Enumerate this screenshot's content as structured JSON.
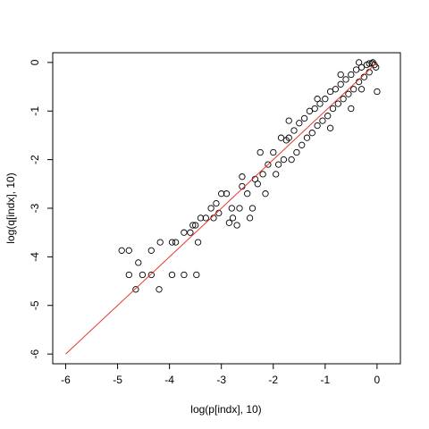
{
  "chart_data": {
    "type": "scatter",
    "title": "",
    "xlabel": "log(p[indx], 10)",
    "ylabel": "log(q[indx], 10)",
    "xlim": [
      -6.25,
      0.45
    ],
    "ylim": [
      -6.2,
      0.2
    ],
    "xticks": [
      -6,
      -5,
      -4,
      -3,
      -2,
      -1,
      0
    ],
    "yticks": [
      -6,
      -5,
      -4,
      -3,
      -2,
      -1,
      0
    ],
    "xtick_labels": [
      "-6",
      "-5",
      "-4",
      "-3",
      "-2",
      "-1",
      "0"
    ],
    "ytick_labels": [
      "-6",
      "-5",
      "-4",
      "-3",
      "-2",
      "-1",
      "0"
    ],
    "grid": false,
    "line": {
      "x": [
        -6,
        0
      ],
      "y": [
        -6,
        0
      ],
      "color": "#e8382c"
    },
    "point_color": "#000000",
    "points": [
      [
        -4.92,
        -3.87
      ],
      [
        -4.78,
        -3.87
      ],
      [
        -4.6,
        -4.12
      ],
      [
        -4.35,
        -3.87
      ],
      [
        -4.18,
        -3.7
      ],
      [
        -3.95,
        -3.7
      ],
      [
        -3.88,
        -3.7
      ],
      [
        -3.72,
        -3.5
      ],
      [
        -3.6,
        -3.5
      ],
      [
        -3.55,
        -3.35
      ],
      [
        -3.5,
        -3.35
      ],
      [
        -3.45,
        -3.7
      ],
      [
        -3.4,
        -3.2
      ],
      [
        -3.3,
        -3.2
      ],
      [
        -3.2,
        -3.0
      ],
      [
        -3.15,
        -3.2
      ],
      [
        -3.1,
        -2.9
      ],
      [
        -3.0,
        -2.7
      ],
      [
        -2.9,
        -2.7
      ],
      [
        -2.85,
        -3.3
      ],
      [
        -2.8,
        -3.0
      ],
      [
        -2.78,
        -3.2
      ],
      [
        -2.7,
        -3.35
      ],
      [
        -2.65,
        -3.0
      ],
      [
        -2.6,
        -2.55
      ],
      [
        -2.5,
        -2.7
      ],
      [
        -2.45,
        -3.2
      ],
      [
        -2.4,
        -3.0
      ],
      [
        -2.35,
        -2.4
      ],
      [
        -2.3,
        -2.5
      ],
      [
        -2.2,
        -2.3
      ],
      [
        -2.15,
        -2.7
      ],
      [
        -2.1,
        -2.1
      ],
      [
        -2.0,
        -1.85
      ],
      [
        -1.95,
        -2.3
      ],
      [
        -1.9,
        -2.1
      ],
      [
        -1.85,
        -1.55
      ],
      [
        -1.8,
        -2.0
      ],
      [
        -1.7,
        -1.55
      ],
      [
        -1.65,
        -2.0
      ],
      [
        -1.6,
        -1.4
      ],
      [
        -1.55,
        -1.85
      ],
      [
        -1.5,
        -1.25
      ],
      [
        -1.45,
        -1.7
      ],
      [
        -1.4,
        -1.15
      ],
      [
        -1.35,
        -1.55
      ],
      [
        -1.3,
        -1.0
      ],
      [
        -1.25,
        -1.45
      ],
      [
        -1.2,
        -0.95
      ],
      [
        -1.15,
        -1.3
      ],
      [
        -1.1,
        -0.85
      ],
      [
        -1.05,
        -1.2
      ],
      [
        -1.0,
        -0.75
      ],
      [
        -0.95,
        -1.1
      ],
      [
        -0.9,
        -0.6
      ],
      [
        -0.85,
        -0.95
      ],
      [
        -0.8,
        -0.55
      ],
      [
        -0.75,
        -0.85
      ],
      [
        -0.7,
        -0.45
      ],
      [
        -0.65,
        -0.75
      ],
      [
        -0.6,
        -0.35
      ],
      [
        -0.55,
        -0.65
      ],
      [
        -0.5,
        -0.25
      ],
      [
        -0.45,
        -0.55
      ],
      [
        -0.4,
        -0.15
      ],
      [
        -0.35,
        -0.4
      ],
      [
        -0.3,
        -0.1
      ],
      [
        -0.25,
        -0.3
      ],
      [
        -0.2,
        -0.05
      ],
      [
        -0.15,
        -0.2
      ],
      [
        -0.1,
        -0.02
      ],
      [
        -0.05,
        -0.05
      ],
      [
        -0.02,
        -0.1
      ],
      [
        0.0,
        -0.6
      ],
      [
        -0.3,
        -0.55
      ],
      [
        -0.5,
        -0.95
      ],
      [
        -0.9,
        -1.35
      ],
      [
        -1.7,
        -1.2
      ],
      [
        -2.6,
        -2.35
      ],
      [
        -3.05,
        -3.1
      ],
      [
        -2.25,
        -1.85
      ],
      [
        -1.75,
        -1.6
      ],
      [
        -1.15,
        -0.75
      ],
      [
        -0.7,
        -0.25
      ],
      [
        -0.35,
        0.0
      ],
      [
        -0.15,
        -0.02
      ],
      [
        -0.08,
        0.0
      ]
    ],
    "outliers": [
      [
        -4.78,
        -4.37
      ],
      [
        -4.52,
        -4.37
      ],
      [
        -4.35,
        -4.37
      ],
      [
        -4.65,
        -4.67
      ],
      [
        -4.2,
        -4.67
      ],
      [
        -3.95,
        -4.37
      ],
      [
        -3.72,
        -4.37
      ],
      [
        -3.48,
        -4.37
      ]
    ]
  }
}
